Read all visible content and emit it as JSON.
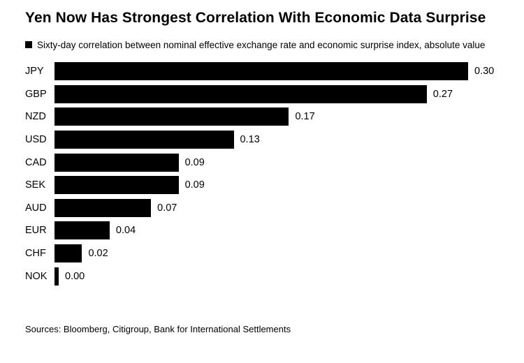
{
  "title": "Yen Now Has Strongest Correlation With Economic Data Surprise",
  "legend": {
    "label": "Sixty-day correlation between nominal effective exchange rate and economic surprise index, absolute value"
  },
  "source": "Sources: Bloomberg, Citigroup, Bank for International Settlements",
  "colors": {
    "bar": "#000000",
    "background": "#ffffff",
    "text": "#000000"
  },
  "chart_data": {
    "type": "bar",
    "orientation": "horizontal",
    "title": "Yen Now Has Strongest Correlation With Economic Data Surprise",
    "legend_label": "Sixty-day correlation between nominal effective exchange rate and economic surprise index, absolute value",
    "categories": [
      "JPY",
      "GBP",
      "NZD",
      "USD",
      "CAD",
      "SEK",
      "AUD",
      "EUR",
      "CHF",
      "NOK"
    ],
    "values": [
      0.3,
      0.27,
      0.17,
      0.13,
      0.09,
      0.09,
      0.07,
      0.04,
      0.02,
      0.0
    ],
    "value_labels": [
      "0.30",
      "0.27",
      "0.17",
      "0.13",
      "0.09",
      "0.09",
      "0.07",
      "0.04",
      "0.02",
      "0.00"
    ],
    "xlim": [
      0,
      0.3
    ],
    "grid": false,
    "legend_position": "top",
    "bar_color": "#000000"
  }
}
